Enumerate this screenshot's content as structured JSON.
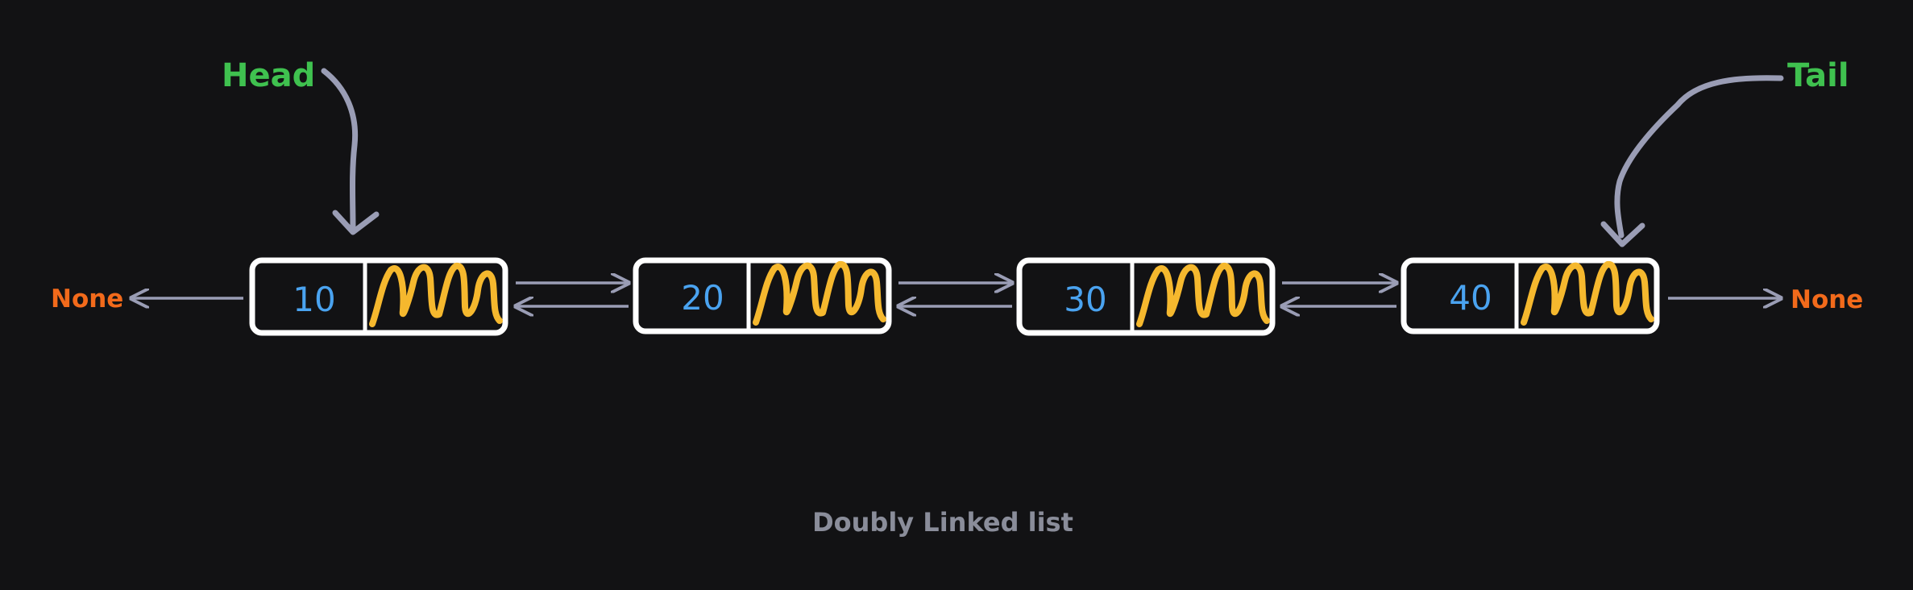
{
  "labels": {
    "head": "Head",
    "tail": "Tail",
    "left_none": "None",
    "right_none": "None",
    "caption": "Doubly Linked list"
  },
  "nodes": [
    {
      "value": "10"
    },
    {
      "value": "20"
    },
    {
      "value": "30"
    },
    {
      "value": "40"
    }
  ],
  "colors": {
    "background": "#121214",
    "head_tail": "#3fc14f",
    "none": "#f26a1b",
    "node_value": "#4aa3f0",
    "pointer_scribble": "#f5b82e",
    "node_border": "#ffffff",
    "arrow": "#9a9db5",
    "caption": "#8a8d9a"
  }
}
